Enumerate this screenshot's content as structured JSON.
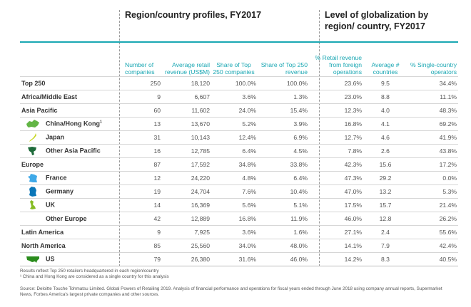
{
  "sections": {
    "profiles": "Region/country profiles, FY2017",
    "globalization": "Level of globalization by region/ country, FY2017"
  },
  "columns": [
    "Number of companies",
    "Average retail revenue (US$M)",
    "Share of Top 250 companies",
    "Share of Top 250 revenue",
    "% Retail revenue from foreign operations",
    "Average # countries",
    "% Single-country operators"
  ],
  "rows": [
    {
      "label": "Top 250",
      "sub": false,
      "icon": null,
      "values": [
        "250",
        "18,120",
        "100.0%",
        "100.0%",
        "23.6%",
        "9.5",
        "34.4%"
      ]
    },
    {
      "label": "Africa/Middle East",
      "sub": false,
      "icon": null,
      "values": [
        "9",
        "6,607",
        "3.6%",
        "1.3%",
        "23.0%",
        "8.8",
        "11.1%"
      ]
    },
    {
      "label": "Asia Pacific",
      "sub": false,
      "icon": null,
      "values": [
        "60",
        "11,602",
        "24.0%",
        "15.4%",
        "12.3%",
        "4.0",
        "48.3%"
      ]
    },
    {
      "label": "China/Hong Kong",
      "sup": "1",
      "sub": true,
      "icon": "china-map-icon",
      "color": "#62b545",
      "values": [
        "13",
        "13,670",
        "5.2%",
        "3.9%",
        "16.8%",
        "4.1",
        "69.2%"
      ]
    },
    {
      "label": "Japan",
      "sub": true,
      "icon": "japan-map-icon",
      "color": "#c6d61e",
      "values": [
        "31",
        "10,143",
        "12.4%",
        "6.9%",
        "12.7%",
        "4.6",
        "41.9%"
      ]
    },
    {
      "label": "Other Asia Pacific",
      "sub": true,
      "icon": "asia-pacific-map-icon",
      "color": "#1e6b3a",
      "values": [
        "16",
        "12,785",
        "6.4%",
        "4.5%",
        "7.8%",
        "2.6",
        "43.8%"
      ]
    },
    {
      "label": "Europe",
      "sub": false,
      "icon": null,
      "values": [
        "87",
        "17,592",
        "34.8%",
        "33.8%",
        "42.3%",
        "15.6",
        "17.2%"
      ]
    },
    {
      "label": "France",
      "sub": true,
      "icon": "france-map-icon",
      "color": "#3fa9e8",
      "values": [
        "12",
        "24,220",
        "4.8%",
        "6.4%",
        "47.3%",
        "29.2",
        "0.0%"
      ]
    },
    {
      "label": "Germany",
      "sub": true,
      "icon": "germany-map-icon",
      "color": "#0a76b8",
      "values": [
        "19",
        "24,704",
        "7.6%",
        "10.4%",
        "47.0%",
        "13.2",
        "5.3%"
      ]
    },
    {
      "label": "UK",
      "sub": true,
      "icon": "uk-map-icon",
      "color": "#86bc25",
      "values": [
        "14",
        "16,369",
        "5.6%",
        "5.1%",
        "17.5%",
        "15.7",
        "21.4%"
      ]
    },
    {
      "label": "Other Europe",
      "sub": true,
      "icon": "",
      "values": [
        "42",
        "12,889",
        "16.8%",
        "11.9%",
        "46.0%",
        "12.8",
        "26.2%"
      ]
    },
    {
      "label": "Latin America",
      "sub": false,
      "icon": null,
      "values": [
        "9",
        "7,925",
        "3.6%",
        "1.6%",
        "27.1%",
        "2.4",
        "55.6%"
      ]
    },
    {
      "label": "North America",
      "sub": false,
      "icon": null,
      "values": [
        "85",
        "25,560",
        "34.0%",
        "48.0%",
        "14.1%",
        "7.9",
        "42.4%"
      ]
    },
    {
      "label": "US",
      "sub": true,
      "icon": "us-map-icon",
      "color": "#2a8c1c",
      "values": [
        "79",
        "26,380",
        "31.6%",
        "46.0%",
        "14.2%",
        "8.3",
        "40.5%"
      ]
    }
  ],
  "notes": {
    "n1": "Results reflect Top 250 retailers headquartered in each region/country",
    "n2": "¹ China and Hong Kong are considered as a single country for this analysis",
    "source": "Source: Deloitte Touche Tohmatsu Limited. Global Powers of Retailing 2019. Analysis of financial performance and operations for fiscal years ended through June 2018 using company annual reports, Supermarket News, Forbes America's largest private companies and other sources."
  },
  "accent": "#1aa7b3"
}
